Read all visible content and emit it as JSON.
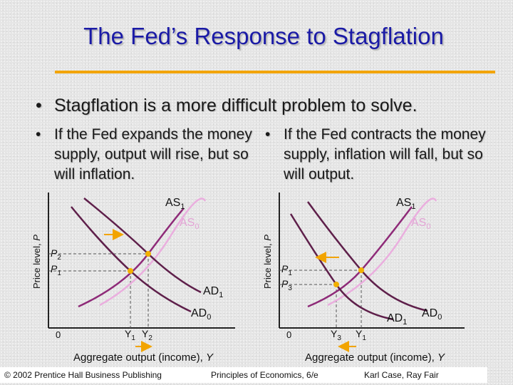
{
  "title": "The Fed’s Response to Stagflation",
  "bullets": {
    "main": "Stagflation is a more difficult problem to solve.",
    "left": "If the Fed expands the money supply, output will rise, but so will inflation.",
    "right": "If the Fed contracts the money supply, inflation will fall, but so will output."
  },
  "bullet_symbol": "•",
  "colors": {
    "title": "#1a1aa6",
    "rule": "#f2a400",
    "ad_curve": "#5e1f4a",
    "as1_curve": "#8e2a78",
    "as0_curve": "#eaaede",
    "point": "#f2b000",
    "arrow": "#f2a400"
  },
  "left_graph": {
    "ylabel": {
      "base": "Price level,",
      "var": "P"
    },
    "xlabel": {
      "base": "Aggregate output (income),",
      "var": "Y"
    },
    "origin": "0",
    "as1": {
      "base": "AS",
      "sub": "1"
    },
    "as0": {
      "base": "AS",
      "sub": "0"
    },
    "ad1": {
      "base": "AD",
      "sub": "1"
    },
    "ad0": {
      "base": "AD",
      "sub": "0"
    },
    "p_upper": {
      "base": "P",
      "sub": "2"
    },
    "p_lower": {
      "base": "P",
      "sub": "1"
    },
    "y_a": {
      "base": "Y",
      "sub": "1"
    },
    "y_b": {
      "base": "Y",
      "sub": "2"
    }
  },
  "right_graph": {
    "ylabel": {
      "base": "Price level,",
      "var": "P"
    },
    "xlabel": {
      "base": "Aggregate output (income),",
      "var": "Y"
    },
    "origin": "0",
    "as1": {
      "base": "AS",
      "sub": "1"
    },
    "as0": {
      "base": "AS",
      "sub": "0"
    },
    "ad1": {
      "base": "AD",
      "sub": "1"
    },
    "ad0": {
      "base": "AD",
      "sub": "0"
    },
    "p_upper": {
      "base": "P",
      "sub": "1"
    },
    "p_lower": {
      "base": "P",
      "sub": "3"
    },
    "y_a": {
      "base": "Y",
      "sub": "3"
    },
    "y_b": {
      "base": "Y",
      "sub": "1"
    }
  },
  "footer": {
    "copyright": "© 2002 Prentice Hall Business Publishing",
    "book": "Principles of Economics, 6/e",
    "authors": "Karl Case, Ray Fair"
  }
}
